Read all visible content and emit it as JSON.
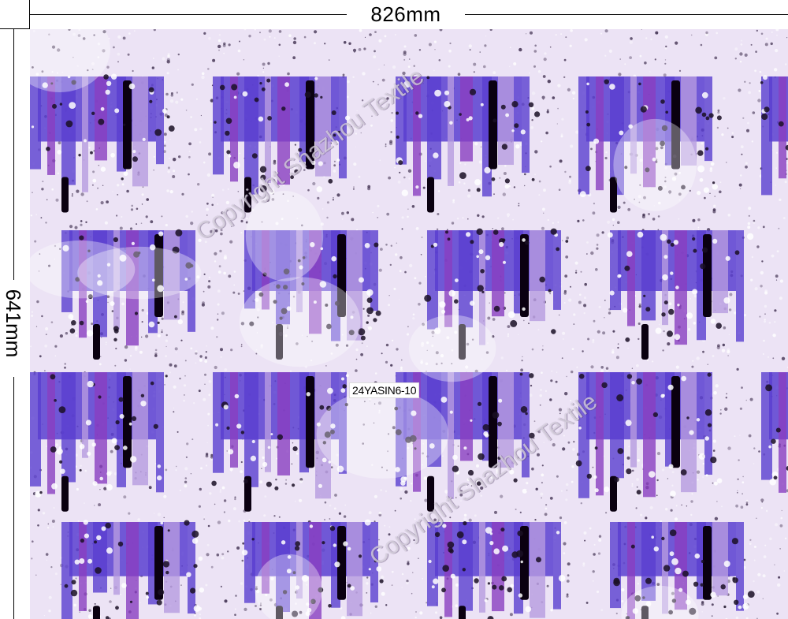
{
  "dimensions": {
    "width_label": "826mm",
    "height_label": "641mm"
  },
  "swatch": {
    "design_code": "24YASIN6-10",
    "watermark_text": "Copyright Shazhou Textile",
    "colors": {
      "background": "#ece3f5",
      "violet_blue": "#5a3fd0",
      "purple": "#8a3fc0",
      "lilac": "#b79be0",
      "black": "#0a0010",
      "white": "#ffffff"
    }
  }
}
